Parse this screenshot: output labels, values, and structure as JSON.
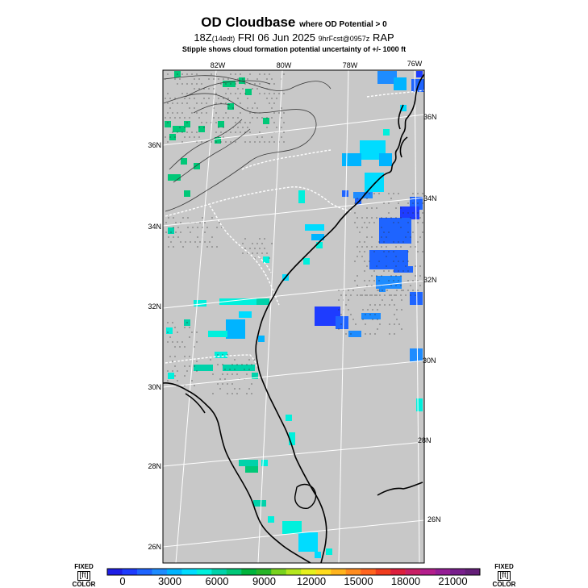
{
  "title": {
    "main": "OD Cloudbase",
    "main_suffix": "where OD Potential > 0",
    "time": "18Z",
    "time_local": "(14edt)",
    "date": "FRI 06 Jun 2025",
    "forecast": "9hrFcst@0957z",
    "model": "RAP",
    "subtitle": "Stipple shows cloud formation potential uncertainty of +/-  1000 ft"
  },
  "map": {
    "background": "#c8c8c8",
    "lon_labels": [
      "82W",
      "80W",
      "78W",
      "76W"
    ],
    "lat_labels_left": [
      "36N",
      "34N",
      "32N",
      "30N",
      "28N",
      "26N"
    ],
    "lat_labels_right": [
      "36N",
      "34N",
      "32N",
      "30N",
      "28N",
      "26N"
    ]
  },
  "colorbar": {
    "left_label_top": "FIXED",
    "left_label_unit": "[ft]",
    "left_label_bottom": "COLOR",
    "right_label_top": "FIXED",
    "right_label_unit": "[ft]",
    "right_label_bottom": "COLOR",
    "ticks": [
      "0",
      "3000",
      "6000",
      "9000",
      "12000",
      "15000",
      "18000",
      "21000"
    ],
    "colors": [
      "#1e1ee6",
      "#1e3cff",
      "#1e64ff",
      "#1e8cff",
      "#00b4ff",
      "#00dcff",
      "#00f0dc",
      "#00d2aa",
      "#00c878",
      "#00b43c",
      "#28b428",
      "#78d21e",
      "#b4e61e",
      "#e6f01e",
      "#ffdc1e",
      "#ffb41e",
      "#ff8c1e",
      "#ff641e",
      "#f03c1e",
      "#dc1e3c",
      "#c81e64",
      "#b41e8c",
      "#961e96",
      "#781e8c",
      "#641e78"
    ]
  }
}
